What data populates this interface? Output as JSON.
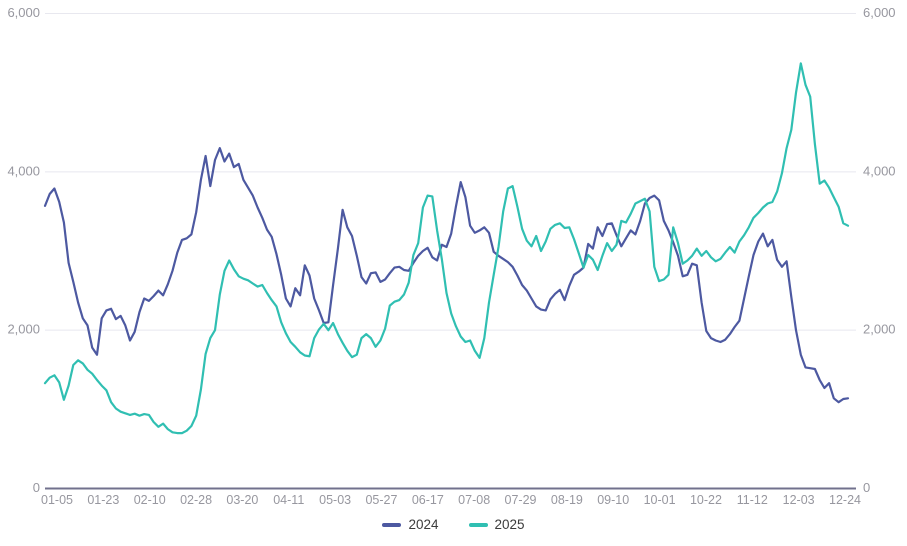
{
  "colors": {
    "background": "#ffffff",
    "grid_line": "#e8e8ef",
    "axis_line": "#71718d",
    "tick_label": "#97979f",
    "legend_text": "#3c3c3c",
    "series_2024": "#4d59a1",
    "series_2025": "#30bfb2"
  },
  "legend": {
    "items": [
      {
        "label": "2024",
        "color": "#4d59a1"
      },
      {
        "label": "2025",
        "color": "#30bfb2"
      }
    ]
  },
  "chart_data": {
    "type": "line",
    "title": "",
    "xlabel": "",
    "ylabel": "",
    "ylim": [
      0,
      6000
    ],
    "y_ticks": [
      0,
      2000,
      4000,
      6000
    ],
    "y_tick_labels_left": [
      "0",
      "2,000",
      "4,000",
      "6,000"
    ],
    "y_tick_labels_right": [
      "0",
      "2,000",
      "4,000",
      "6,000"
    ],
    "grid": "horizontal gridlines at 2000/4000/6000, solid bottom axis",
    "legend_position": "bottom-center",
    "x_tick_labels": [
      "01-05",
      "01-23",
      "02-10",
      "02-28",
      "03-20",
      "04-11",
      "05-03",
      "05-27",
      "06-17",
      "07-08",
      "07-29",
      "08-19",
      "09-10",
      "10-01",
      "10-22",
      "11-12",
      "12-03",
      "12-24"
    ],
    "n_points": 171,
    "series": [
      {
        "name": "2024",
        "color": "#4d59a1",
        "values": [
          3570,
          3720,
          3790,
          3620,
          3360,
          2850,
          2610,
          2350,
          2150,
          2060,
          1780,
          1690,
          2150,
          2250,
          2270,
          2140,
          2180,
          2060,
          1870,
          1980,
          2230,
          2400,
          2370,
          2430,
          2500,
          2440,
          2580,
          2750,
          2980,
          3140,
          3160,
          3210,
          3490,
          3900,
          4200,
          3820,
          4150,
          4300,
          4130,
          4230,
          4060,
          4100,
          3900,
          3800,
          3700,
          3550,
          3420,
          3270,
          3180,
          2960,
          2700,
          2400,
          2300,
          2530,
          2440,
          2820,
          2690,
          2400,
          2250,
          2090,
          2100,
          2570,
          3030,
          3520,
          3300,
          3190,
          2940,
          2670,
          2590,
          2720,
          2730,
          2610,
          2640,
          2720,
          2790,
          2800,
          2760,
          2750,
          2850,
          2940,
          3000,
          3040,
          2920,
          2880,
          3080,
          3050,
          3220,
          3560,
          3870,
          3680,
          3320,
          3230,
          3260,
          3300,
          3230,
          2990,
          2940,
          2900,
          2860,
          2800,
          2690,
          2570,
          2500,
          2400,
          2300,
          2260,
          2250,
          2390,
          2460,
          2510,
          2380,
          2560,
          2700,
          2740,
          2790,
          3090,
          3030,
          3300,
          3190,
          3340,
          3350,
          3200,
          3060,
          3160,
          3260,
          3210,
          3380,
          3600,
          3670,
          3700,
          3640,
          3380,
          3260,
          3110,
          2940,
          2680,
          2700,
          2840,
          2820,
          2350,
          1990,
          1900,
          1870,
          1850,
          1880,
          1950,
          2040,
          2120,
          2400,
          2680,
          2950,
          3120,
          3220,
          3060,
          3140,
          2890,
          2800,
          2870,
          2420,
          2000,
          1690,
          1530,
          1520,
          1510,
          1370,
          1270,
          1330,
          1140,
          1090,
          1130,
          1140
        ]
      },
      {
        "name": "2025",
        "color": "#30bfb2",
        "values": [
          1330,
          1400,
          1430,
          1340,
          1120,
          1300,
          1560,
          1620,
          1580,
          1500,
          1450,
          1370,
          1300,
          1240,
          1090,
          1010,
          970,
          950,
          930,
          945,
          920,
          940,
          930,
          840,
          780,
          820,
          750,
          710,
          700,
          700,
          730,
          790,
          920,
          1250,
          1700,
          1900,
          2000,
          2450,
          2750,
          2880,
          2770,
          2680,
          2650,
          2630,
          2590,
          2550,
          2570,
          2470,
          2380,
          2300,
          2100,
          1960,
          1850,
          1790,
          1720,
          1680,
          1670,
          1900,
          2010,
          2080,
          2000,
          2090,
          1950,
          1840,
          1740,
          1660,
          1690,
          1900,
          1950,
          1900,
          1790,
          1870,
          2020,
          2310,
          2360,
          2380,
          2450,
          2600,
          2950,
          3100,
          3550,
          3700,
          3690,
          3260,
          2900,
          2470,
          2210,
          2050,
          1920,
          1850,
          1870,
          1740,
          1650,
          1900,
          2350,
          2700,
          3050,
          3500,
          3790,
          3820,
          3560,
          3280,
          3130,
          3060,
          3190,
          3000,
          3120,
          3280,
          3330,
          3350,
          3290,
          3300,
          3150,
          2970,
          2790,
          2950,
          2890,
          2760,
          2940,
          3100,
          3000,
          3080,
          3380,
          3360,
          3470,
          3600,
          3630,
          3660,
          3500,
          2800,
          2620,
          2640,
          2700,
          3300,
          3100,
          2840,
          2880,
          2940,
          3030,
          2940,
          3000,
          2920,
          2870,
          2900,
          2980,
          3050,
          2980,
          3120,
          3200,
          3300,
          3420,
          3480,
          3550,
          3600,
          3620,
          3750,
          3980,
          4300,
          4530,
          5000,
          5370,
          5100,
          4950,
          4350,
          3850,
          3890,
          3800,
          3680,
          3560,
          3350,
          3320
        ]
      }
    ]
  }
}
